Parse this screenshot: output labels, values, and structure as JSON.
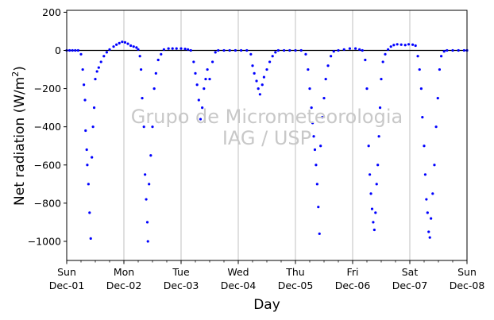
{
  "chart_data": {
    "type": "scatter",
    "title": "",
    "xlabel": "Day",
    "ylabel": "Net radiation (W/m²)",
    "ylabel_parts": {
      "base": "Net radiation (W/m",
      "sup": "2",
      "close": ")"
    },
    "watermark": [
      "Grupo de Micrometeorologia",
      "IAG / USP"
    ],
    "xlim": [
      0,
      7
    ],
    "ylim": [
      -1100,
      210
    ],
    "yticks": [
      200,
      0,
      -200,
      -400,
      -600,
      -800,
      -1000
    ],
    "ytick_labels": [
      "200",
      "0",
      "−200",
      "−400",
      "−600",
      "−800",
      "−1000"
    ],
    "xticks": [
      {
        "day": 0,
        "weekday": "Sun",
        "date": "Dec-01"
      },
      {
        "day": 1,
        "weekday": "Mon",
        "date": "Dec-02"
      },
      {
        "day": 2,
        "weekday": "Tue",
        "date": "Dec-03"
      },
      {
        "day": 3,
        "weekday": "Wed",
        "date": "Dec-04"
      },
      {
        "day": 4,
        "weekday": "Thu",
        "date": "Dec-05"
      },
      {
        "day": 5,
        "weekday": "Fri",
        "date": "Dec-06"
      },
      {
        "day": 6,
        "weekday": "Sat",
        "date": "Dec-07"
      },
      {
        "day": 7,
        "weekday": "Sun",
        "date": "Dec-08"
      }
    ],
    "minor_ticks_per_day": 4,
    "grid": "vertical",
    "zero_line": true,
    "marker_color": "#0000ff",
    "series": [
      {
        "points": [
          [
            0.0,
            0
          ],
          [
            0.05,
            0
          ],
          [
            0.1,
            0
          ],
          [
            0.15,
            0
          ],
          [
            0.2,
            0
          ],
          [
            0.25,
            -20
          ],
          [
            0.28,
            -100
          ],
          [
            0.3,
            -180
          ],
          [
            0.32,
            -260
          ],
          [
            0.33,
            -420
          ],
          [
            0.35,
            -520
          ],
          [
            0.36,
            -600
          ],
          [
            0.38,
            -700
          ],
          [
            0.4,
            -850
          ],
          [
            0.42,
            -985
          ],
          [
            0.44,
            -560
          ],
          [
            0.46,
            -400
          ],
          [
            0.48,
            -300
          ],
          [
            0.5,
            -150
          ],
          [
            0.53,
            -110
          ],
          [
            0.56,
            -90
          ],
          [
            0.6,
            -60
          ],
          [
            0.65,
            -30
          ],
          [
            0.7,
            -10
          ],
          [
            0.75,
            5
          ],
          [
            0.82,
            20
          ],
          [
            0.87,
            30
          ],
          [
            0.92,
            38
          ],
          [
            0.97,
            45
          ],
          [
            1.02,
            42
          ],
          [
            1.07,
            35
          ],
          [
            1.12,
            25
          ],
          [
            1.17,
            20
          ],
          [
            1.22,
            15
          ],
          [
            1.25,
            5
          ],
          [
            1.28,
            -30
          ],
          [
            1.3,
            -100
          ],
          [
            1.32,
            -250
          ],
          [
            1.35,
            -400
          ],
          [
            1.37,
            -650
          ],
          [
            1.39,
            -780
          ],
          [
            1.41,
            -900
          ],
          [
            1.42,
            -1000
          ],
          [
            1.44,
            -700
          ],
          [
            1.47,
            -550
          ],
          [
            1.5,
            -400
          ],
          [
            1.53,
            -200
          ],
          [
            1.56,
            -120
          ],
          [
            1.6,
            -50
          ],
          [
            1.65,
            -20
          ],
          [
            1.7,
            5
          ],
          [
            1.78,
            10
          ],
          [
            1.85,
            10
          ],
          [
            1.92,
            10
          ],
          [
            2.0,
            10
          ],
          [
            2.07,
            8
          ],
          [
            2.12,
            5
          ],
          [
            2.17,
            0
          ],
          [
            2.22,
            -60
          ],
          [
            2.25,
            -120
          ],
          [
            2.28,
            -180
          ],
          [
            2.31,
            -260
          ],
          [
            2.34,
            -360
          ],
          [
            2.37,
            -300
          ],
          [
            2.4,
            -200
          ],
          [
            2.43,
            -150
          ],
          [
            2.46,
            -100
          ],
          [
            2.5,
            -150
          ],
          [
            2.55,
            -60
          ],
          [
            2.6,
            -10
          ],
          [
            2.65,
            0
          ],
          [
            2.75,
            0
          ],
          [
            2.85,
            0
          ],
          [
            2.95,
            0
          ],
          [
            3.05,
            0
          ],
          [
            3.15,
            0
          ],
          [
            3.22,
            -20
          ],
          [
            3.25,
            -80
          ],
          [
            3.28,
            -120
          ],
          [
            3.32,
            -160
          ],
          [
            3.35,
            -200
          ],
          [
            3.38,
            -230
          ],
          [
            3.42,
            -180
          ],
          [
            3.45,
            -140
          ],
          [
            3.5,
            -100
          ],
          [
            3.55,
            -60
          ],
          [
            3.6,
            -30
          ],
          [
            3.65,
            -10
          ],
          [
            3.7,
            0
          ],
          [
            3.8,
            0
          ],
          [
            3.9,
            0
          ],
          [
            4.0,
            0
          ],
          [
            4.1,
            0
          ],
          [
            4.18,
            -20
          ],
          [
            4.22,
            -100
          ],
          [
            4.25,
            -200
          ],
          [
            4.28,
            -300
          ],
          [
            4.3,
            -380
          ],
          [
            4.32,
            -450
          ],
          [
            4.34,
            -520
          ],
          [
            4.36,
            -600
          ],
          [
            4.38,
            -700
          ],
          [
            4.4,
            -820
          ],
          [
            4.42,
            -960
          ],
          [
            4.44,
            -500
          ],
          [
            4.47,
            -350
          ],
          [
            4.5,
            -250
          ],
          [
            4.53,
            -150
          ],
          [
            4.57,
            -80
          ],
          [
            4.62,
            -30
          ],
          [
            4.67,
            -5
          ],
          [
            4.75,
            0
          ],
          [
            4.85,
            5
          ],
          [
            4.95,
            10
          ],
          [
            5.05,
            10
          ],
          [
            5.12,
            5
          ],
          [
            5.17,
            0
          ],
          [
            5.22,
            -50
          ],
          [
            5.25,
            -200
          ],
          [
            5.28,
            -500
          ],
          [
            5.3,
            -650
          ],
          [
            5.32,
            -750
          ],
          [
            5.34,
            -830
          ],
          [
            5.36,
            -900
          ],
          [
            5.38,
            -940
          ],
          [
            5.4,
            -850
          ],
          [
            5.42,
            -700
          ],
          [
            5.44,
            -600
          ],
          [
            5.46,
            -450
          ],
          [
            5.48,
            -300
          ],
          [
            5.5,
            -150
          ],
          [
            5.53,
            -60
          ],
          [
            5.57,
            -20
          ],
          [
            5.62,
            5
          ],
          [
            5.67,
            20
          ],
          [
            5.72,
            28
          ],
          [
            5.78,
            32
          ],
          [
            5.85,
            30
          ],
          [
            5.92,
            28
          ],
          [
            5.98,
            32
          ],
          [
            6.05,
            30
          ],
          [
            6.1,
            25
          ],
          [
            6.14,
            -30
          ],
          [
            6.17,
            -100
          ],
          [
            6.2,
            -200
          ],
          [
            6.22,
            -350
          ],
          [
            6.25,
            -500
          ],
          [
            6.27,
            -650
          ],
          [
            6.29,
            -780
          ],
          [
            6.31,
            -850
          ],
          [
            6.33,
            -950
          ],
          [
            6.35,
            -980
          ],
          [
            6.37,
            -880
          ],
          [
            6.4,
            -750
          ],
          [
            6.43,
            -600
          ],
          [
            6.46,
            -400
          ],
          [
            6.49,
            -250
          ],
          [
            6.52,
            -100
          ],
          [
            6.55,
            -30
          ],
          [
            6.6,
            -5
          ],
          [
            6.65,
            0
          ],
          [
            6.75,
            0
          ],
          [
            6.85,
            0
          ],
          [
            6.95,
            0
          ],
          [
            7.0,
            0
          ]
        ]
      }
    ]
  }
}
